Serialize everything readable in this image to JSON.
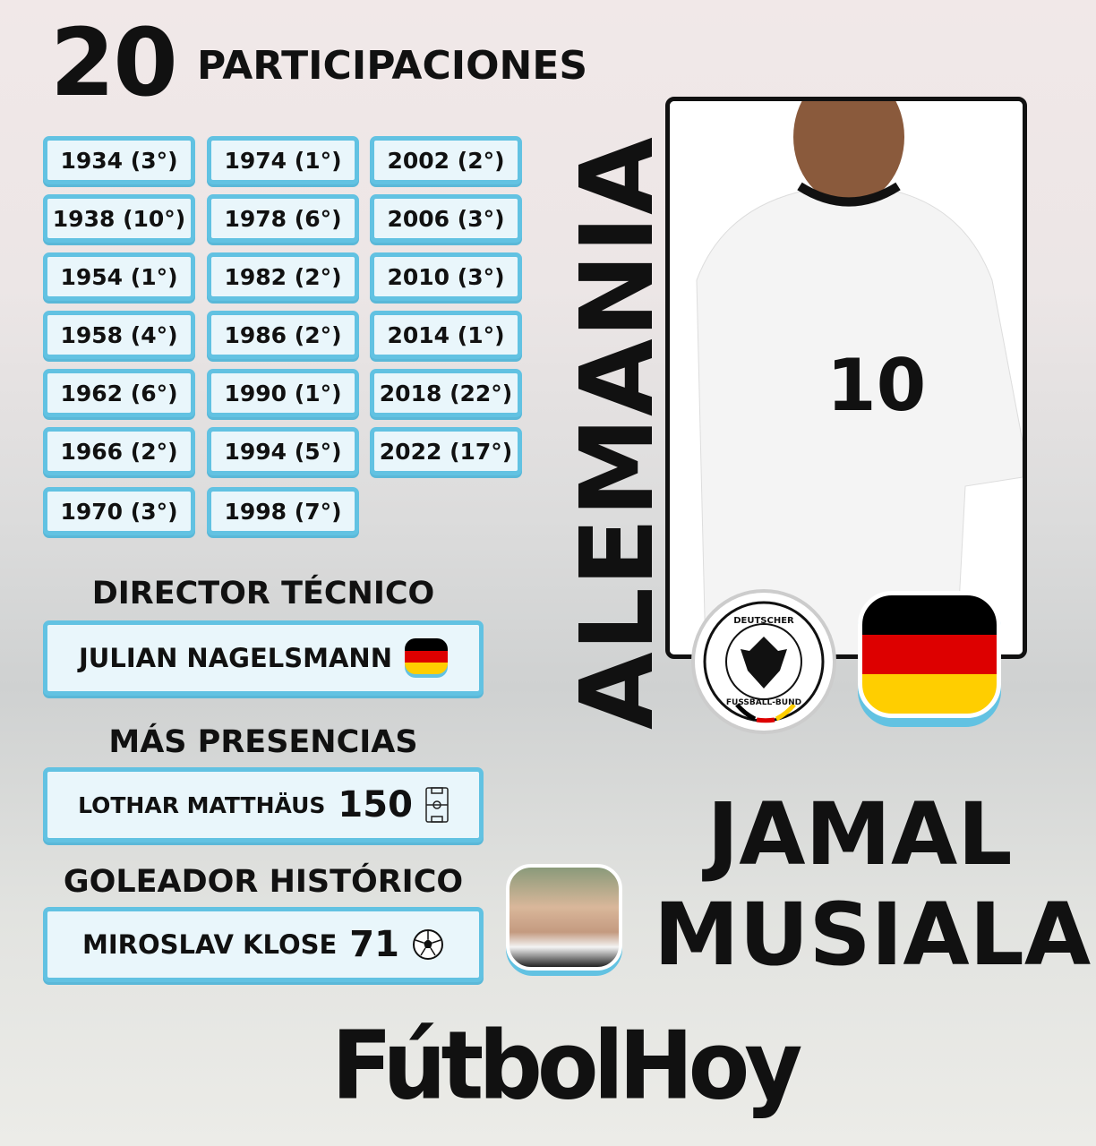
{
  "header": {
    "count": "20",
    "label": "PARTICIPACIONES"
  },
  "participations": [
    [
      "1934 (3°)",
      "1974 (1°)",
      "2002 (2°)"
    ],
    [
      "1938 (10°)",
      "1978 (6°)",
      "2006 (3°)"
    ],
    [
      "1954 (1°)",
      "1982 (2°)",
      "2010 (3°)"
    ],
    [
      "1958 (4°)",
      "1986 (2°)",
      "2014 (1°)"
    ],
    [
      "1962 (6°)",
      "1990 (1°)",
      "2018 (22°)"
    ],
    [
      "1966 (2°)",
      "1994 (5°)",
      "2022 (17°)"
    ],
    [
      "1970 (3°)",
      "1998 (7°)",
      null
    ]
  ],
  "coach": {
    "title": "DIRECTOR TÉCNICO",
    "name": "JULIAN NAGELSMANN",
    "icon": "germany-flag-icon"
  },
  "caps": {
    "title": "MÁS PRESENCIAS",
    "name": "LOTHAR MATTHÄUS",
    "value": "150",
    "icon": "football-pitch-icon"
  },
  "scorer": {
    "title": "GOLEADOR HISTÓRICO",
    "name": "MIROSLAV KLOSE",
    "value": "71",
    "icon": "soccer-ball-icon"
  },
  "country": "ALEMANIA",
  "player": {
    "first": "JAMAL",
    "last": "MUSIALA",
    "shirt_number": "10"
  },
  "crest": {
    "text_top": "DEUTSCHER",
    "text_bottom": "FUSSBALL-BUND"
  },
  "logo": "FútbolHoy",
  "colors": {
    "box_border": "#62c2e2",
    "box_fill": "#e9f6fb",
    "flag": [
      "#000000",
      "#dd0000",
      "#ffce00"
    ]
  }
}
